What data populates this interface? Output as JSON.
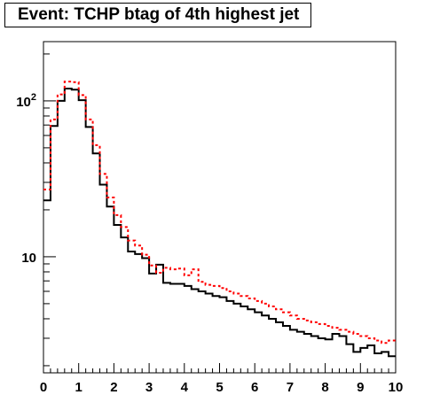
{
  "title": "Event: TCHP btag of 4th highest jet",
  "colors": {
    "black_series": "#000000",
    "red_series": "#ff0000",
    "frame": "#000000",
    "background": "#ffffff"
  },
  "chart_data": {
    "type": "histogram",
    "title": "Event: TCHP btag of 4th highest jet",
    "xlabel": "",
    "ylabel": "",
    "xlim": [
      0,
      10
    ],
    "ylim": [
      1.8,
      240
    ],
    "yscale": "log",
    "grid": false,
    "x_ticks": [
      "0",
      "1",
      "2",
      "3",
      "4",
      "5",
      "6",
      "7",
      "8",
      "9",
      "10"
    ],
    "y_tick_labels": [
      {
        "value": 10,
        "base": "10",
        "exp": ""
      },
      {
        "value": 100,
        "base": "10",
        "exp": "2"
      }
    ],
    "bin_edges": [
      0,
      0.2,
      0.4,
      0.6,
      0.8,
      1.0,
      1.2,
      1.4,
      1.6,
      1.8,
      2.0,
      2.2,
      2.4,
      2.6,
      2.8,
      3.0,
      3.2,
      3.4,
      3.6,
      3.8,
      4.0,
      4.2,
      4.4,
      4.6,
      4.8,
      5.0,
      5.2,
      5.4,
      5.6,
      5.8,
      6.0,
      6.2,
      6.4,
      6.6,
      6.8,
      7.0,
      7.2,
      7.4,
      7.6,
      7.8,
      8.0,
      8.2,
      8.4,
      8.6,
      8.8,
      9.0,
      9.2,
      9.4,
      9.6,
      9.8,
      10.0
    ],
    "series": [
      {
        "style": "solid",
        "color": "#000000",
        "values": [
          23,
          69,
          100,
          120,
          118,
          101,
          68,
          46,
          29,
          21,
          16,
          13.3,
          10.8,
          10.4,
          9.8,
          7.8,
          8.9,
          6.8,
          6.7,
          6.7,
          6.5,
          6.2,
          6.0,
          5.8,
          5.6,
          5.5,
          5.2,
          5.0,
          4.8,
          4.6,
          4.4,
          4.2,
          4.0,
          3.8,
          3.6,
          3.4,
          3.3,
          3.2,
          3.1,
          3.0,
          2.95,
          3.2,
          3.1,
          2.75,
          2.45,
          2.6,
          2.7,
          2.4,
          2.45,
          2.3
        ]
      },
      {
        "style": "dashed",
        "color": "#ff0000",
        "values": [
          27,
          76,
          110,
          133,
          132,
          109,
          76,
          52,
          34,
          24,
          18.5,
          15.5,
          12.7,
          11.8,
          10.3,
          8.8,
          7.9,
          8.5,
          8.3,
          8.4,
          7.6,
          8.3,
          6.9,
          6.6,
          6.5,
          6.3,
          6.0,
          5.8,
          5.6,
          5.4,
          5.2,
          5.0,
          4.8,
          4.6,
          4.4,
          4.2,
          4.0,
          3.9,
          3.8,
          3.7,
          3.6,
          3.5,
          3.4,
          3.3,
          3.2,
          3.1,
          3.0,
          2.9,
          2.8,
          2.9
        ]
      }
    ]
  }
}
